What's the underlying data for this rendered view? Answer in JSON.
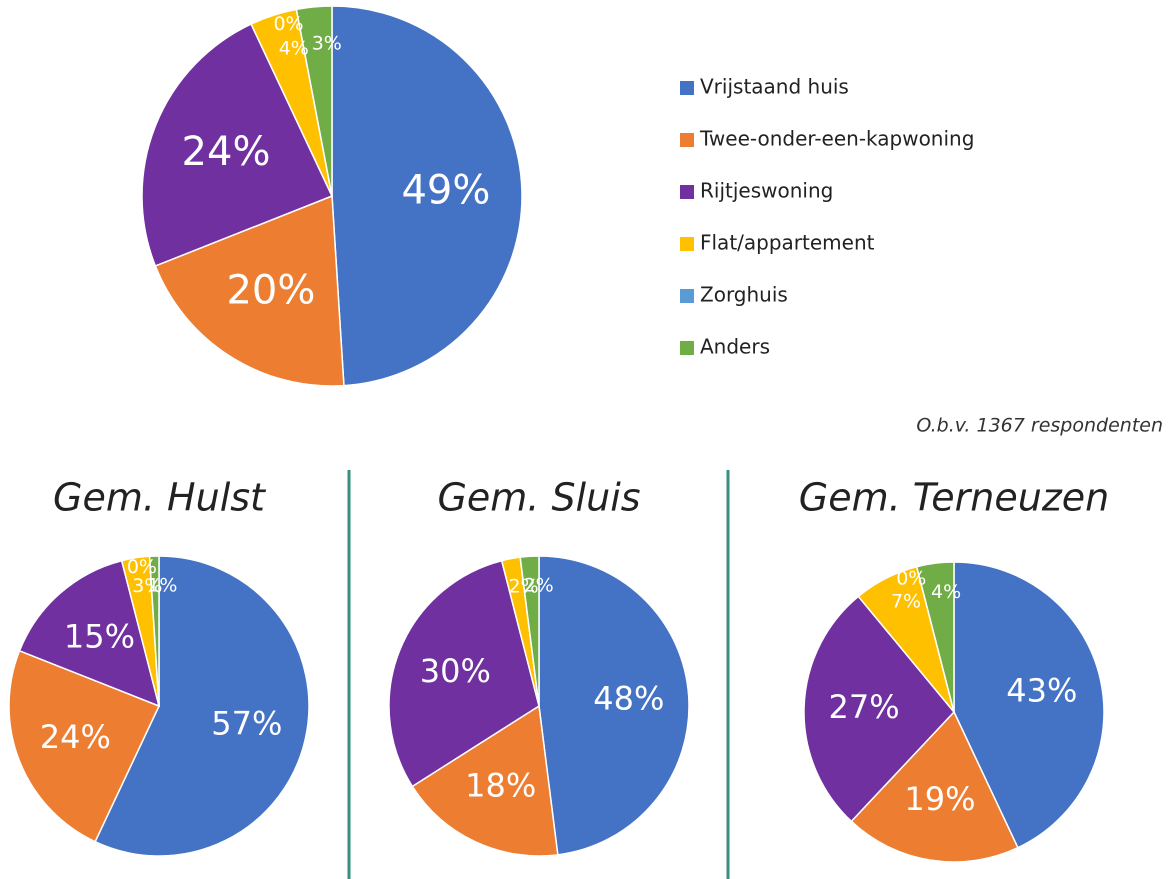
{
  "chart_data": [
    {
      "type": "pie",
      "categories": [
        "Vrijstaand huis",
        "Twee-onder-een-kapwoning",
        "Rijtjeswoning",
        "Flat/appartement",
        "Zorghuis",
        "Anders"
      ],
      "values": [
        49,
        20,
        24,
        4,
        0,
        3
      ],
      "value_labels": [
        "49%",
        "20%",
        "24%",
        "4%",
        "0%",
        "3%"
      ],
      "colors": [
        "#4472c4",
        "#ed7d31",
        "#7030a0",
        "#ffc000",
        "#5b9bd5",
        "#70ad47"
      ],
      "note": "O.b.v. 1367 respondenten",
      "legend": "right"
    },
    {
      "type": "pie",
      "title": "Gem. Hulst",
      "values": [
        57,
        24,
        15,
        3,
        0,
        1
      ],
      "value_labels": [
        "57%",
        "24%",
        "15%",
        "3%",
        "0%",
        "1%"
      ],
      "colors": [
        "#4472c4",
        "#ed7d31",
        "#7030a0",
        "#ffc000",
        "#5b9bd5",
        "#70ad47"
      ]
    },
    {
      "type": "pie",
      "title": "Gem. Sluis",
      "values": [
        48,
        18,
        30,
        2,
        0,
        2
      ],
      "value_labels": [
        "48%",
        "18%",
        "30%",
        "2%",
        null,
        "2%"
      ],
      "colors": [
        "#4472c4",
        "#ed7d31",
        "#7030a0",
        "#ffc000",
        "#5b9bd5",
        "#70ad47"
      ]
    },
    {
      "type": "pie",
      "title": "Gem. Terneuzen",
      "values": [
        43,
        19,
        27,
        7,
        0,
        4
      ],
      "value_labels": [
        "43%",
        "19%",
        "27%",
        "7%",
        "0%",
        "4%"
      ],
      "colors": [
        "#4472c4",
        "#ed7d31",
        "#7030a0",
        "#ffc000",
        "#5b9bd5",
        "#70ad47"
      ]
    }
  ]
}
